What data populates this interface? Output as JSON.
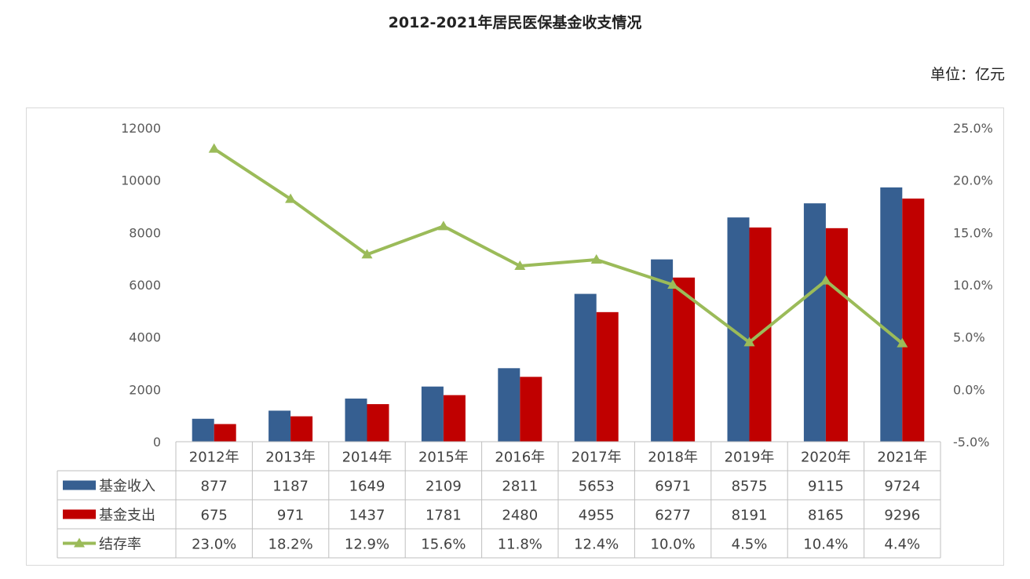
{
  "title": "2012-2021年居民医保基金收支情况",
  "unit_label": "单位：亿元",
  "chart_data": {
    "type": "bar",
    "title": "2012-2021年居民医保基金收支情况",
    "categories": [
      "2012年",
      "2013年",
      "2014年",
      "2015年",
      "2016年",
      "2017年",
      "2018年",
      "2019年",
      "2020年",
      "2021年"
    ],
    "series": [
      {
        "name": "基金收入",
        "type": "bar",
        "axis": "left",
        "color": "#365f91",
        "values": [
          877,
          1187,
          1649,
          2109,
          2811,
          5653,
          6971,
          8575,
          9115,
          9724
        ],
        "labels": [
          "877",
          "1187",
          "1649",
          "2109",
          "2811",
          "5653",
          "6971",
          "8575",
          "9115",
          "9724"
        ]
      },
      {
        "name": "基金支出",
        "type": "bar",
        "axis": "left",
        "color": "#c00000",
        "values": [
          675,
          971,
          1437,
          1781,
          2480,
          4955,
          6277,
          8191,
          8165,
          9296
        ],
        "labels": [
          "675",
          "971",
          "1437",
          "1781",
          "2480",
          "4955",
          "6277",
          "8191",
          "8165",
          "9296"
        ]
      },
      {
        "name": "结存率",
        "type": "line",
        "axis": "right",
        "color": "#9bbb59",
        "marker": "triangle",
        "values": [
          23.0,
          18.2,
          12.9,
          15.6,
          11.8,
          12.4,
          10.0,
          4.5,
          10.4,
          4.4
        ],
        "labels": [
          "23.0%",
          "18.2%",
          "12.9%",
          "15.6%",
          "11.8%",
          "12.4%",
          "10.0%",
          "4.5%",
          "10.4%",
          "4.4%"
        ]
      }
    ],
    "y_left": {
      "ylim": [
        0,
        12000
      ],
      "ticks": [
        "0",
        "2000",
        "4000",
        "6000",
        "8000",
        "10000",
        "12000"
      ]
    },
    "y_right": {
      "ylim": [
        -5,
        25
      ],
      "ticks": [
        "-5.0%",
        "0.0%",
        "5.0%",
        "10.0%",
        "15.0%",
        "20.0%",
        "25.0%"
      ]
    },
    "legend": "data-table",
    "grid": false
  }
}
